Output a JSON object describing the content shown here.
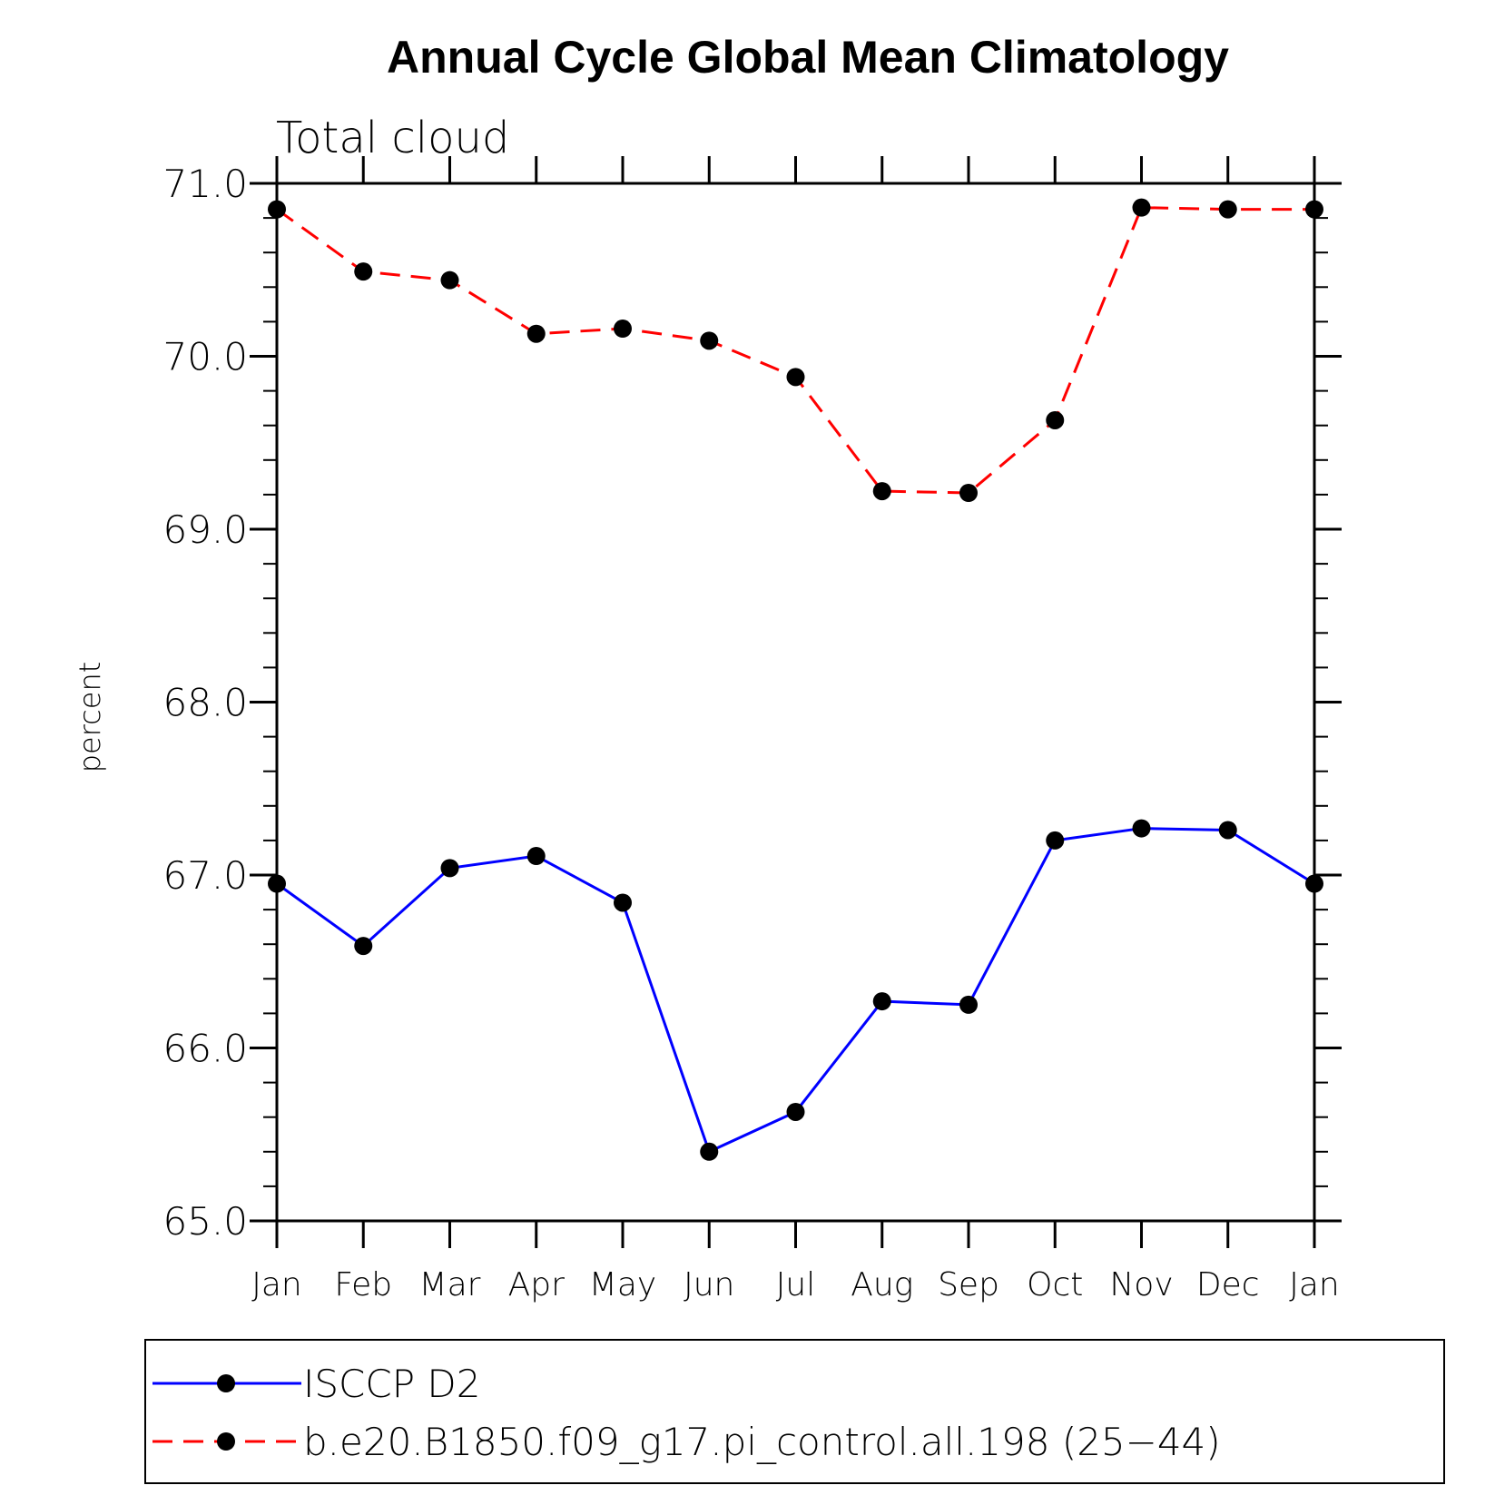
{
  "chart_data": {
    "type": "line",
    "title": "Annual Cycle Global Mean Climatology",
    "subtitle": "Total cloud",
    "xlabel": "",
    "ylabel": "percent",
    "categories": [
      "Jan",
      "Feb",
      "Mar",
      "Apr",
      "May",
      "Jun",
      "Jul",
      "Aug",
      "Sep",
      "Oct",
      "Nov",
      "Dec",
      "Jan"
    ],
    "ylim": [
      65.0,
      71.0
    ],
    "yticks": [
      "65.0",
      "66.0",
      "67.0",
      "68.0",
      "69.0",
      "70.0",
      "71.0"
    ],
    "grid": false,
    "legend_position": "bottom",
    "series": [
      {
        "name": "ISCCP D2",
        "color": "#0000ff",
        "style": "solid",
        "marker": "filled-circle",
        "values": [
          66.95,
          66.59,
          67.04,
          67.11,
          66.84,
          65.4,
          65.63,
          66.27,
          66.25,
          67.2,
          67.27,
          67.26,
          66.95
        ]
      },
      {
        "name": "b.e20.B1850.f09_g17.pi_control.all.198 (25−44)",
        "color": "#ff0000",
        "style": "dashed",
        "marker": "filled-circle",
        "values": [
          70.85,
          70.49,
          70.44,
          70.13,
          70.16,
          70.09,
          69.88,
          69.22,
          69.21,
          69.63,
          70.86,
          70.85,
          70.85
        ]
      }
    ]
  }
}
